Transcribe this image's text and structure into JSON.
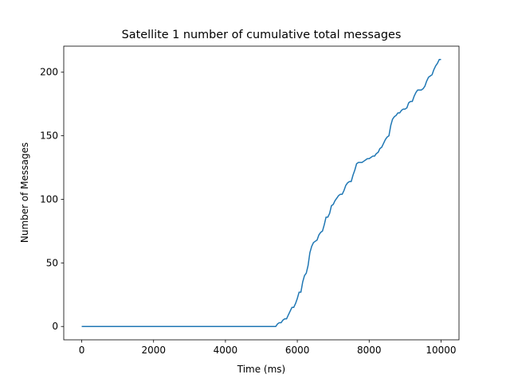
{
  "chart_data": {
    "type": "line",
    "title": "Satellite 1 number of cumulative total messages",
    "xlabel": "Time (ms)",
    "ylabel": "Number of Messages",
    "xlim": [
      -500,
      10500
    ],
    "ylim": [
      -10.5,
      220.5
    ],
    "xticks": [
      0,
      2000,
      4000,
      6000,
      8000,
      10000
    ],
    "xtick_labels": [
      "0",
      "2000",
      "4000",
      "6000",
      "8000",
      "10000"
    ],
    "yticks": [
      0,
      50,
      100,
      150,
      200
    ],
    "ytick_labels": [
      "0",
      "50",
      "100",
      "150",
      "200"
    ],
    "grid": false,
    "legend": "none",
    "series": [
      {
        "color": "#1f77b4",
        "x": [
          0,
          5400,
          5450,
          5500,
          5550,
          5600,
          5650,
          5700,
          5750,
          5800,
          5850,
          5900,
          5950,
          6000,
          6050,
          6100,
          6150,
          6200,
          6250,
          6300,
          6350,
          6400,
          6450,
          6500,
          6550,
          6600,
          6650,
          6700,
          6750,
          6800,
          6850,
          6900,
          6950,
          7000,
          7050,
          7100,
          7150,
          7200,
          7250,
          7300,
          7350,
          7400,
          7450,
          7500,
          7550,
          7600,
          7650,
          7700,
          7750,
          7800,
          7850,
          7900,
          7950,
          8000,
          8050,
          8100,
          8150,
          8200,
          8250,
          8300,
          8350,
          8400,
          8450,
          8500,
          8550,
          8600,
          8650,
          8700,
          8750,
          8800,
          8850,
          8900,
          8950,
          9000,
          9050,
          9100,
          9150,
          9200,
          9250,
          9300,
          9350,
          9400,
          9450,
          9500,
          9550,
          9600,
          9650,
          9700,
          9750,
          9800,
          9850,
          9900,
          9950,
          10000
        ],
        "y": [
          0,
          0,
          2,
          3,
          3,
          5,
          6,
          6,
          9,
          12,
          15,
          15,
          18,
          22,
          27,
          27,
          35,
          40,
          42,
          48,
          58,
          63,
          66,
          67,
          68,
          72,
          74,
          75,
          80,
          86,
          86,
          89,
          95,
          96,
          99,
          101,
          103,
          104,
          104,
          107,
          111,
          113,
          114,
          114,
          119,
          123,
          128,
          129,
          129,
          129,
          130,
          131,
          132,
          132,
          133,
          134,
          134,
          136,
          137,
          140,
          141,
          144,
          147,
          149,
          150,
          158,
          163,
          165,
          166,
          168,
          168,
          170,
          171,
          171,
          172,
          176,
          177,
          177,
          181,
          184,
          186,
          186,
          186,
          187,
          189,
          193,
          196,
          197,
          198,
          202,
          205,
          207,
          210,
          210
        ]
      }
    ]
  }
}
